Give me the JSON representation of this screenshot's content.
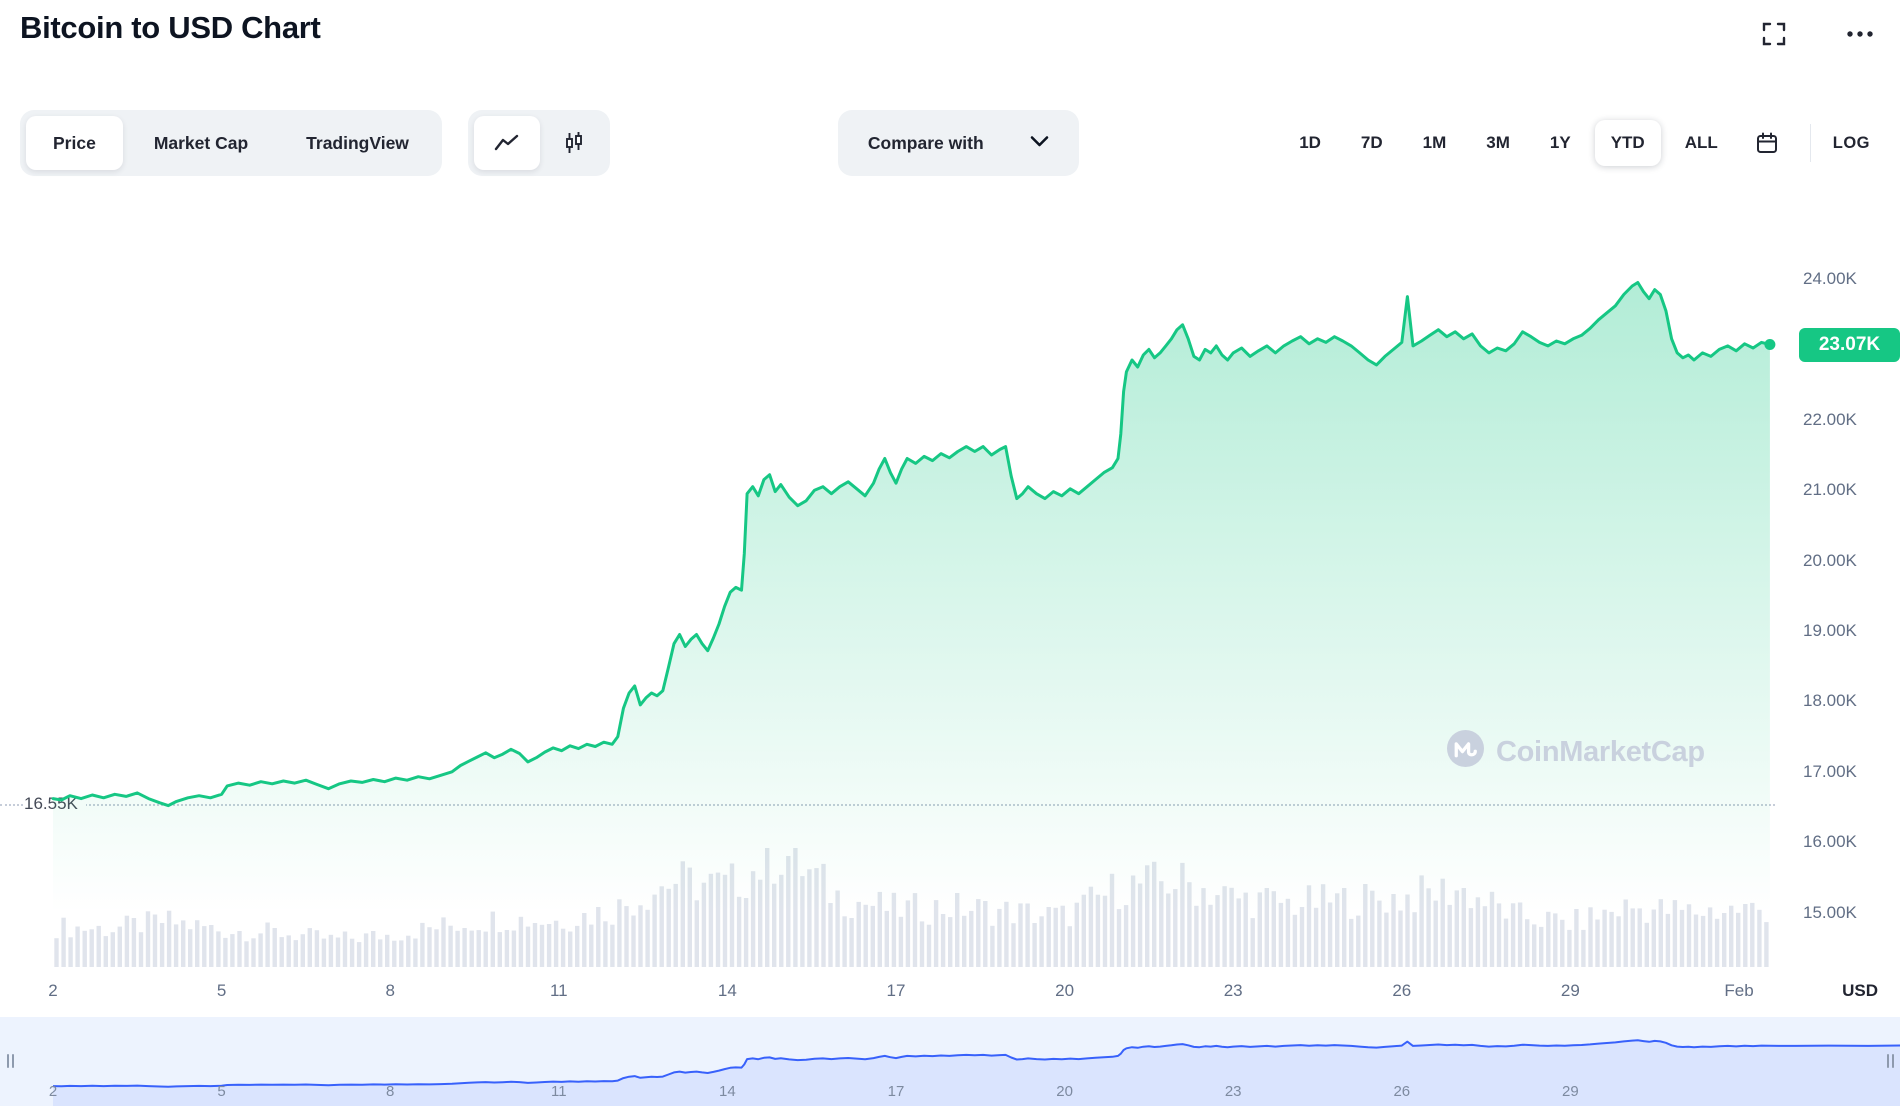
{
  "page": {
    "title": "Bitcoin to USD Chart"
  },
  "icons": [
    "fullscreen-icon",
    "more-options-icon",
    "line-chart-icon",
    "candlestick-chart-icon",
    "chevron-down-icon",
    "calendar-icon",
    "coinmarketcap-logo-icon"
  ],
  "toolbar": {
    "tabs": [
      {
        "label": "Price",
        "selected": true
      },
      {
        "label": "Market Cap",
        "selected": false
      },
      {
        "label": "TradingView",
        "selected": false
      }
    ],
    "chart_types": [
      {
        "name": "line-chart",
        "selected": true
      },
      {
        "name": "candlestick-chart",
        "selected": false
      }
    ],
    "compare": {
      "label": "Compare with"
    },
    "ranges": [
      {
        "label": "1D",
        "selected": false
      },
      {
        "label": "7D",
        "selected": false
      },
      {
        "label": "1M",
        "selected": false
      },
      {
        "label": "3M",
        "selected": false
      },
      {
        "label": "1Y",
        "selected": false
      },
      {
        "label": "YTD",
        "selected": true
      },
      {
        "label": "ALL",
        "selected": false
      }
    ],
    "log_label": "LOG"
  },
  "watermark": {
    "text": "CoinMarketCap"
  },
  "chart_data": {
    "type": "area",
    "title": "Bitcoin to USD, year-to-date (Jan 2 – Feb 1)",
    "unit": "USD",
    "last_price_value": 23.07,
    "last_price_label": "23.07K",
    "min_line": {
      "value": 16.55,
      "label": "16.55K"
    },
    "y_ticks": [
      {
        "value": 24,
        "label": "24.00K"
      },
      {
        "value": 22,
        "label": "22.00K"
      },
      {
        "value": 21,
        "label": "21.00K"
      },
      {
        "value": 20,
        "label": "20.00K"
      },
      {
        "value": 19,
        "label": "19.00K"
      },
      {
        "value": 18,
        "label": "18.00K"
      },
      {
        "value": 17,
        "label": "17.00K"
      },
      {
        "value": 16,
        "label": "16.00K"
      },
      {
        "value": 15,
        "label": "15.00K"
      }
    ],
    "x_ticks": [
      {
        "day": 2,
        "label": "2"
      },
      {
        "day": 5,
        "label": "5"
      },
      {
        "day": 8,
        "label": "8"
      },
      {
        "day": 11,
        "label": "11"
      },
      {
        "day": 14,
        "label": "14"
      },
      {
        "day": 17,
        "label": "17"
      },
      {
        "day": 20,
        "label": "20"
      },
      {
        "day": 23,
        "label": "23"
      },
      {
        "day": 26,
        "label": "26"
      },
      {
        "day": 29,
        "label": "29"
      },
      {
        "day": 32,
        "label": "Feb"
      }
    ],
    "colors": {
      "line": "#16c784",
      "badge": "#16c784",
      "volume": "#e0e4ec",
      "navigator_line": "#3861fb",
      "navigator_fill": "rgba(56,97,251,0.10)"
    },
    "series_day_priceK": [
      [
        2.0,
        16.62
      ],
      [
        2.15,
        16.6
      ],
      [
        2.3,
        16.66
      ],
      [
        2.5,
        16.62
      ],
      [
        2.7,
        16.67
      ],
      [
        2.9,
        16.63
      ],
      [
        3.1,
        16.68
      ],
      [
        3.3,
        16.65
      ],
      [
        3.5,
        16.7
      ],
      [
        3.7,
        16.62
      ],
      [
        3.9,
        16.56
      ],
      [
        4.05,
        16.52
      ],
      [
        4.2,
        16.58
      ],
      [
        4.4,
        16.63
      ],
      [
        4.6,
        16.66
      ],
      [
        4.8,
        16.63
      ],
      [
        5.0,
        16.68
      ],
      [
        5.1,
        16.8
      ],
      [
        5.3,
        16.84
      ],
      [
        5.5,
        16.81
      ],
      [
        5.7,
        16.86
      ],
      [
        5.9,
        16.83
      ],
      [
        6.1,
        16.87
      ],
      [
        6.3,
        16.84
      ],
      [
        6.5,
        16.88
      ],
      [
        6.7,
        16.82
      ],
      [
        6.9,
        16.76
      ],
      [
        7.1,
        16.83
      ],
      [
        7.3,
        16.87
      ],
      [
        7.5,
        16.85
      ],
      [
        7.7,
        16.89
      ],
      [
        7.9,
        16.86
      ],
      [
        8.1,
        16.91
      ],
      [
        8.3,
        16.88
      ],
      [
        8.5,
        16.93
      ],
      [
        8.7,
        16.9
      ],
      [
        8.9,
        16.95
      ],
      [
        9.1,
        17.0
      ],
      [
        9.25,
        17.09
      ],
      [
        9.4,
        17.15
      ],
      [
        9.55,
        17.21
      ],
      [
        9.7,
        17.27
      ],
      [
        9.85,
        17.2
      ],
      [
        10.0,
        17.25
      ],
      [
        10.15,
        17.32
      ],
      [
        10.3,
        17.26
      ],
      [
        10.45,
        17.14
      ],
      [
        10.6,
        17.2
      ],
      [
        10.75,
        17.28
      ],
      [
        10.9,
        17.34
      ],
      [
        11.05,
        17.3
      ],
      [
        11.2,
        17.37
      ],
      [
        11.35,
        17.33
      ],
      [
        11.5,
        17.39
      ],
      [
        11.65,
        17.36
      ],
      [
        11.8,
        17.42
      ],
      [
        11.95,
        17.39
      ],
      [
        12.05,
        17.5
      ],
      [
        12.15,
        17.9
      ],
      [
        12.25,
        18.12
      ],
      [
        12.35,
        18.22
      ],
      [
        12.45,
        17.95
      ],
      [
        12.55,
        18.05
      ],
      [
        12.65,
        18.12
      ],
      [
        12.75,
        18.08
      ],
      [
        12.85,
        18.15
      ],
      [
        12.95,
        18.48
      ],
      [
        13.05,
        18.82
      ],
      [
        13.15,
        18.95
      ],
      [
        13.25,
        18.78
      ],
      [
        13.35,
        18.88
      ],
      [
        13.45,
        18.95
      ],
      [
        13.55,
        18.82
      ],
      [
        13.65,
        18.72
      ],
      [
        13.75,
        18.9
      ],
      [
        13.85,
        19.1
      ],
      [
        13.95,
        19.35
      ],
      [
        14.05,
        19.55
      ],
      [
        14.15,
        19.62
      ],
      [
        14.25,
        19.58
      ],
      [
        14.3,
        20.1
      ],
      [
        14.35,
        20.95
      ],
      [
        14.45,
        21.05
      ],
      [
        14.55,
        20.92
      ],
      [
        14.65,
        21.15
      ],
      [
        14.75,
        21.22
      ],
      [
        14.85,
        20.98
      ],
      [
        14.95,
        21.08
      ],
      [
        15.1,
        20.9
      ],
      [
        15.25,
        20.78
      ],
      [
        15.4,
        20.85
      ],
      [
        15.55,
        21.0
      ],
      [
        15.7,
        21.05
      ],
      [
        15.85,
        20.95
      ],
      [
        16.0,
        21.05
      ],
      [
        16.15,
        21.12
      ],
      [
        16.3,
        21.02
      ],
      [
        16.45,
        20.92
      ],
      [
        16.6,
        21.1
      ],
      [
        16.7,
        21.3
      ],
      [
        16.8,
        21.45
      ],
      [
        16.9,
        21.25
      ],
      [
        17.0,
        21.1
      ],
      [
        17.1,
        21.3
      ],
      [
        17.2,
        21.45
      ],
      [
        17.35,
        21.38
      ],
      [
        17.5,
        21.48
      ],
      [
        17.65,
        21.42
      ],
      [
        17.8,
        21.52
      ],
      [
        17.95,
        21.46
      ],
      [
        18.1,
        21.55
      ],
      [
        18.25,
        21.62
      ],
      [
        18.4,
        21.55
      ],
      [
        18.55,
        21.62
      ],
      [
        18.7,
        21.5
      ],
      [
        18.85,
        21.58
      ],
      [
        18.95,
        21.62
      ],
      [
        19.05,
        21.2
      ],
      [
        19.15,
        20.88
      ],
      [
        19.25,
        20.95
      ],
      [
        19.35,
        21.05
      ],
      [
        19.5,
        20.95
      ],
      [
        19.65,
        20.88
      ],
      [
        19.8,
        20.98
      ],
      [
        19.95,
        20.92
      ],
      [
        20.1,
        21.02
      ],
      [
        20.25,
        20.95
      ],
      [
        20.4,
        21.05
      ],
      [
        20.55,
        21.15
      ],
      [
        20.7,
        21.25
      ],
      [
        20.85,
        21.32
      ],
      [
        20.95,
        21.45
      ],
      [
        21.0,
        21.8
      ],
      [
        21.05,
        22.4
      ],
      [
        21.1,
        22.68
      ],
      [
        21.2,
        22.85
      ],
      [
        21.3,
        22.75
      ],
      [
        21.4,
        22.92
      ],
      [
        21.5,
        23.0
      ],
      [
        21.6,
        22.88
      ],
      [
        21.7,
        22.95
      ],
      [
        21.8,
        23.05
      ],
      [
        21.9,
        23.15
      ],
      [
        22.0,
        23.28
      ],
      [
        22.1,
        23.35
      ],
      [
        22.2,
        23.15
      ],
      [
        22.3,
        22.9
      ],
      [
        22.4,
        22.85
      ],
      [
        22.5,
        23.0
      ],
      [
        22.6,
        22.95
      ],
      [
        22.7,
        23.05
      ],
      [
        22.8,
        22.92
      ],
      [
        22.9,
        22.85
      ],
      [
        23.0,
        22.95
      ],
      [
        23.15,
        23.02
      ],
      [
        23.3,
        22.9
      ],
      [
        23.45,
        22.98
      ],
      [
        23.6,
        23.05
      ],
      [
        23.75,
        22.95
      ],
      [
        23.9,
        23.05
      ],
      [
        24.05,
        23.12
      ],
      [
        24.2,
        23.18
      ],
      [
        24.35,
        23.08
      ],
      [
        24.5,
        23.15
      ],
      [
        24.65,
        23.1
      ],
      [
        24.8,
        23.18
      ],
      [
        24.95,
        23.12
      ],
      [
        25.1,
        23.05
      ],
      [
        25.25,
        22.95
      ],
      [
        25.4,
        22.85
      ],
      [
        25.55,
        22.78
      ],
      [
        25.7,
        22.9
      ],
      [
        25.85,
        23.0
      ],
      [
        26.0,
        23.1
      ],
      [
        26.1,
        23.75
      ],
      [
        26.15,
        23.4
      ],
      [
        26.2,
        23.05
      ],
      [
        26.35,
        23.12
      ],
      [
        26.5,
        23.2
      ],
      [
        26.65,
        23.28
      ],
      [
        26.8,
        23.18
      ],
      [
        26.95,
        23.25
      ],
      [
        27.1,
        23.15
      ],
      [
        27.25,
        23.22
      ],
      [
        27.4,
        23.05
      ],
      [
        27.55,
        22.95
      ],
      [
        27.7,
        23.02
      ],
      [
        27.85,
        22.98
      ],
      [
        28.0,
        23.08
      ],
      [
        28.15,
        23.25
      ],
      [
        28.3,
        23.18
      ],
      [
        28.45,
        23.1
      ],
      [
        28.6,
        23.05
      ],
      [
        28.75,
        23.12
      ],
      [
        28.9,
        23.08
      ],
      [
        29.05,
        23.15
      ],
      [
        29.2,
        23.2
      ],
      [
        29.35,
        23.3
      ],
      [
        29.5,
        23.42
      ],
      [
        29.65,
        23.52
      ],
      [
        29.8,
        23.62
      ],
      [
        29.95,
        23.78
      ],
      [
        30.1,
        23.9
      ],
      [
        30.2,
        23.95
      ],
      [
        30.3,
        23.82
      ],
      [
        30.4,
        23.72
      ],
      [
        30.5,
        23.85
      ],
      [
        30.6,
        23.78
      ],
      [
        30.7,
        23.55
      ],
      [
        30.8,
        23.15
      ],
      [
        30.9,
        22.95
      ],
      [
        31.0,
        22.88
      ],
      [
        31.1,
        22.92
      ],
      [
        31.2,
        22.85
      ],
      [
        31.35,
        22.95
      ],
      [
        31.5,
        22.9
      ],
      [
        31.65,
        23.0
      ],
      [
        31.8,
        23.05
      ],
      [
        31.95,
        22.98
      ],
      [
        32.1,
        23.08
      ],
      [
        32.25,
        23.02
      ],
      [
        32.4,
        23.1
      ],
      [
        32.55,
        23.07
      ]
    ],
    "volume_days": [
      2,
      3,
      4,
      5,
      6,
      7,
      8,
      9,
      10,
      11,
      12,
      13,
      14,
      15,
      16,
      17,
      18,
      19,
      20,
      21,
      22,
      23,
      24,
      25,
      26,
      27,
      28,
      29,
      30,
      31,
      32
    ],
    "volume_relative": [
      0.35,
      0.33,
      0.4,
      0.32,
      0.3,
      0.24,
      0.28,
      0.36,
      0.42,
      0.4,
      0.5,
      0.75,
      0.7,
      1.0,
      0.6,
      0.5,
      0.52,
      0.48,
      0.44,
      0.7,
      0.75,
      0.6,
      0.55,
      0.58,
      0.6,
      0.68,
      0.45,
      0.38,
      0.52,
      0.48,
      0.5
    ],
    "navigator": {
      "x_tick_days": [
        2,
        5,
        8,
        11,
        14,
        17,
        20,
        23,
        26,
        29
      ],
      "x_tick_labels": [
        "2",
        "5",
        "8",
        "11",
        "14",
        "17",
        "20",
        "23",
        "26",
        "29"
      ],
      "series_extension_day_priceK": [
        [
          33.0,
          23.05
        ],
        [
          33.6,
          23.1
        ],
        [
          34.3,
          23.06
        ],
        [
          34.9,
          23.12
        ]
      ]
    }
  }
}
